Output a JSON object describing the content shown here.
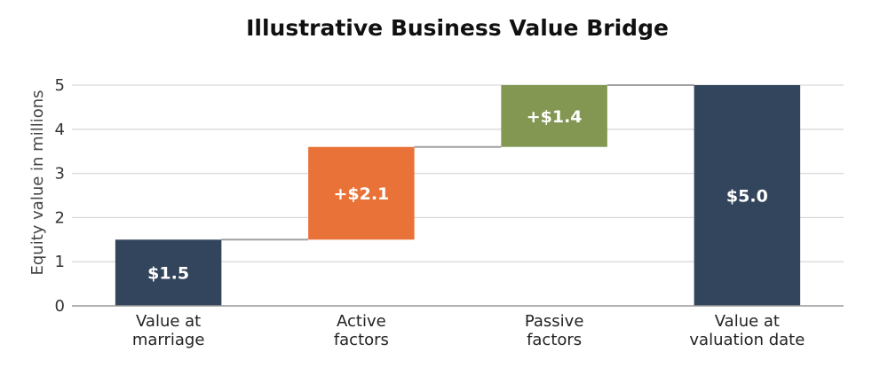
{
  "chart_data": {
    "type": "bar",
    "subtype": "waterfall",
    "title": "Illustrative Business Value Bridge",
    "xlabel": "",
    "ylabel": "Equity value in millions",
    "ylim": [
      0,
      5
    ],
    "yticks": [
      "0",
      "1",
      "2",
      "3",
      "4",
      "5"
    ],
    "grid": true,
    "categories": [
      [
        "Value at",
        "marriage"
      ],
      [
        "Active",
        "factors"
      ],
      [
        "Passive",
        "factors"
      ],
      [
        "Value at",
        "valuation date"
      ]
    ],
    "bars": [
      {
        "base": 0,
        "value": 1.5,
        "kind": "total",
        "label": "$1.5",
        "color": "#33455c"
      },
      {
        "base": 1.5,
        "value": 2.1,
        "kind": "delta",
        "label": "+$2.1",
        "color": "#e87238"
      },
      {
        "base": 3.6,
        "value": 1.4,
        "kind": "delta",
        "label": "+$1.4",
        "color": "#839752"
      },
      {
        "base": 0,
        "value": 5.0,
        "kind": "total",
        "label": "$5.0",
        "color": "#33455c"
      }
    ],
    "connector_color": "#a0a0a0",
    "grid_color": "#d9d9d9",
    "axis_color": "#999999"
  }
}
